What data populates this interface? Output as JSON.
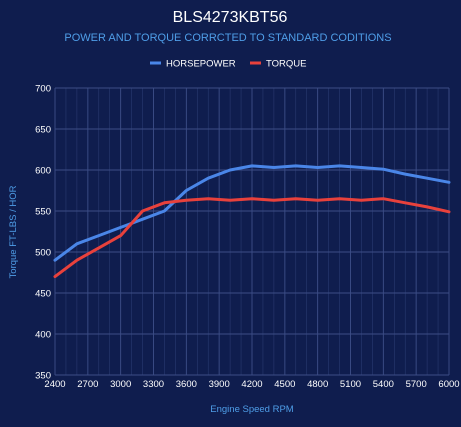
{
  "chart_data": {
    "type": "line",
    "title": "BLS4273KBT56",
    "subtitle": "POWER AND TORQUE CORRCTED TO STANDARD CODITIONS",
    "xlabel": "Engine Speed RPM",
    "ylabel": "Torque FT-LBS / HOR",
    "xlim": [
      2400,
      6000
    ],
    "ylim": [
      350,
      700
    ],
    "xticks": [
      2400,
      2700,
      3000,
      3300,
      3600,
      3900,
      4200,
      4500,
      4800,
      5100,
      5400,
      5700,
      6000
    ],
    "yticks": [
      350,
      400,
      450,
      500,
      550,
      600,
      650,
      700
    ],
    "grid": true,
    "legend_position": "top",
    "series": [
      {
        "name": "HORSEPOWER",
        "color": "#4a86e8",
        "x": [
          2400,
          2600,
          2800,
          3000,
          3200,
          3400,
          3600,
          3800,
          4000,
          4200,
          4400,
          4600,
          4800,
          5000,
          5200,
          5400,
          5600,
          5800,
          6000
        ],
        "values": [
          490,
          510,
          520,
          530,
          540,
          550,
          575,
          590,
          600,
          605,
          603,
          605,
          603,
          605,
          603,
          601,
          595,
          590,
          585
        ]
      },
      {
        "name": "TORQUE",
        "color": "#e8413c",
        "x": [
          2400,
          2600,
          2800,
          3000,
          3200,
          3400,
          3600,
          3800,
          4000,
          4200,
          4400,
          4600,
          4800,
          5000,
          5200,
          5400,
          5600,
          5800,
          6000
        ],
        "values": [
          470,
          490,
          505,
          520,
          550,
          560,
          563,
          565,
          563,
          565,
          563,
          565,
          563,
          565,
          563,
          565,
          560,
          555,
          549
        ]
      }
    ]
  }
}
